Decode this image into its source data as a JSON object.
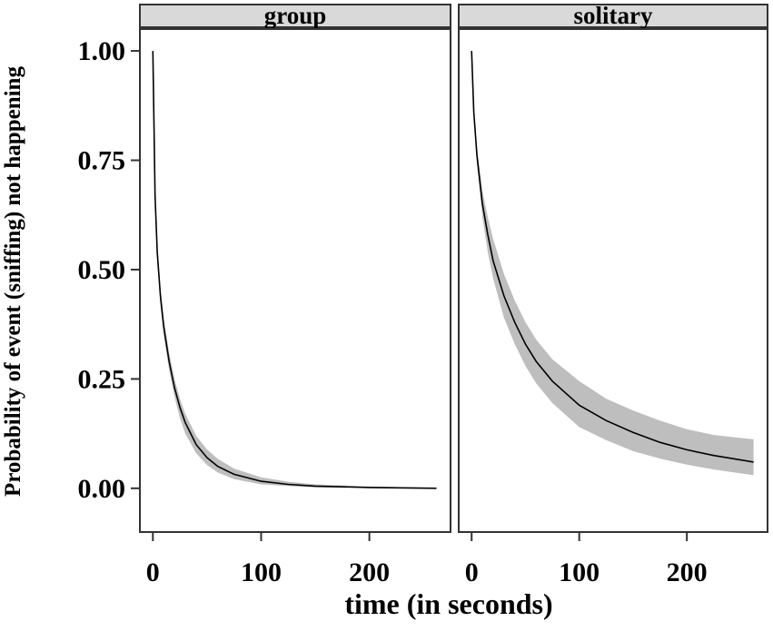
{
  "chart_data": {
    "type": "line",
    "title": "",
    "xlabel": "time (in seconds)",
    "ylabel": "Probability of event (sniffing) not happening",
    "xlim": [
      -12,
      275
    ],
    "ylim": [
      -0.1,
      1.05
    ],
    "x_ticks": [
      0,
      100,
      200
    ],
    "x_tick_labels": [
      "0",
      "100",
      "200"
    ],
    "y_ticks": [
      0,
      0.25,
      0.5,
      0.75,
      1.0
    ],
    "y_tick_labels": [
      "0.00",
      "0.25",
      "0.50",
      "0.75",
      "1.00"
    ],
    "grid": false,
    "legend": "none",
    "line_color": "#000000",
    "band_color": "#bebebe",
    "strip_color": "#d9d9d9",
    "panels": [
      {
        "name": "group",
        "x": [
          0,
          2,
          4,
          7,
          10,
          15,
          20,
          25,
          30,
          40,
          50,
          60,
          75,
          100,
          125,
          150,
          200,
          262
        ],
        "y": [
          1.0,
          0.67,
          0.54,
          0.44,
          0.37,
          0.29,
          0.23,
          0.185,
          0.15,
          0.1,
          0.07,
          0.05,
          0.032,
          0.016,
          0.009,
          0.005,
          0.002,
          0.0
        ],
        "lower": [
          1.0,
          0.65,
          0.52,
          0.42,
          0.35,
          0.27,
          0.21,
          0.16,
          0.125,
          0.08,
          0.053,
          0.036,
          0.021,
          0.009,
          0.005,
          0.002,
          0.0005,
          0.0
        ],
        "upper": [
          1.0,
          0.69,
          0.56,
          0.46,
          0.39,
          0.31,
          0.25,
          0.205,
          0.17,
          0.12,
          0.089,
          0.067,
          0.045,
          0.025,
          0.015,
          0.009,
          0.004,
          0.001
        ]
      },
      {
        "name": "solitary",
        "x": [
          0,
          2,
          5,
          10,
          15,
          20,
          30,
          40,
          50,
          60,
          75,
          100,
          125,
          150,
          175,
          200,
          225,
          262
        ],
        "y": [
          1.0,
          0.86,
          0.76,
          0.65,
          0.58,
          0.52,
          0.44,
          0.38,
          0.33,
          0.29,
          0.245,
          0.19,
          0.155,
          0.128,
          0.105,
          0.088,
          0.075,
          0.06
        ],
        "lower": [
          1.0,
          0.85,
          0.74,
          0.62,
          0.54,
          0.48,
          0.39,
          0.33,
          0.28,
          0.24,
          0.195,
          0.14,
          0.11,
          0.085,
          0.068,
          0.054,
          0.043,
          0.03
        ],
        "upper": [
          1.0,
          0.875,
          0.78,
          0.68,
          0.62,
          0.57,
          0.49,
          0.43,
          0.38,
          0.34,
          0.295,
          0.245,
          0.205,
          0.178,
          0.155,
          0.135,
          0.122,
          0.112
        ]
      }
    ]
  }
}
